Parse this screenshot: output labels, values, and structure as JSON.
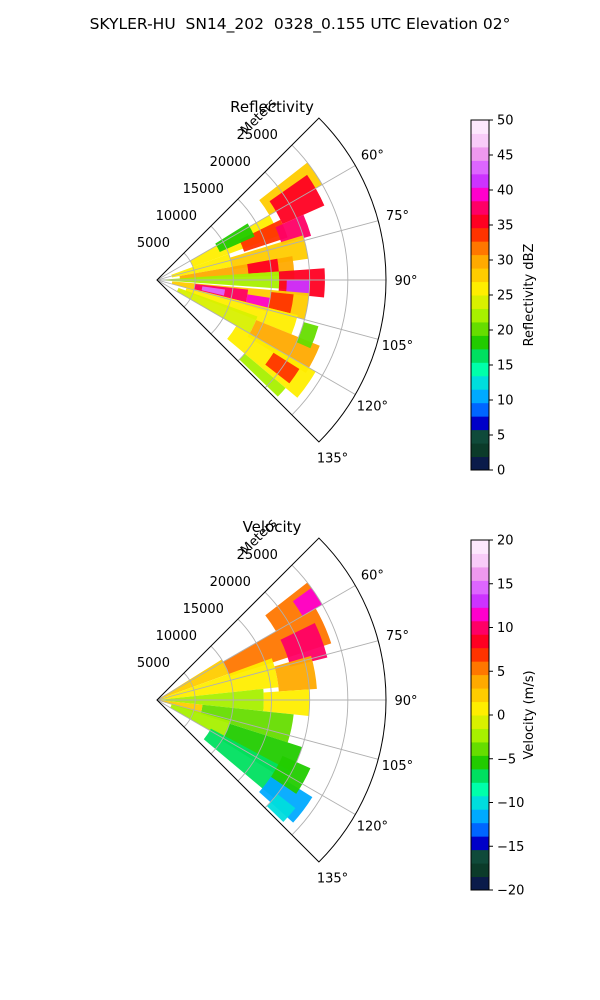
{
  "figure": {
    "title": "SKYLER-HU  SN14_202  0328_0.155 UTC Elevation 02°"
  },
  "chart_data": [
    {
      "type": "heatmap",
      "projection": "polar-sector",
      "title": "Reflectivity",
      "radial_label": "Meters",
      "radial_ticks": [
        5000,
        10000,
        15000,
        20000,
        25000
      ],
      "radial_tick_labels": [
        "5000",
        "10000",
        "15000",
        "20000",
        "25000"
      ],
      "r_lim": [
        0,
        30000
      ],
      "angle_ticks": [
        60,
        75,
        90,
        105,
        120,
        135
      ],
      "angle_tick_labels": [
        "60°",
        "75°",
        "90°",
        "105°",
        "120°",
        "135°"
      ],
      "angle_lim": [
        45,
        135
      ],
      "grid": true,
      "colorbar": {
        "label": "Reflectivity dBZ",
        "ticks": [
          0,
          5,
          10,
          15,
          20,
          25,
          30,
          35,
          40,
          45,
          50
        ],
        "tick_labels": [
          "0",
          "5",
          "10",
          "15",
          "20",
          "25",
          "30",
          "35",
          "40",
          "45",
          "50"
        ],
        "range": [
          0,
          50
        ],
        "colors": [
          "#0a1b4a",
          "#0b3b2a",
          "#0f4a3a",
          "#0000c8",
          "#0066ff",
          "#00aaff",
          "#00dddd",
          "#00ffaa",
          "#00e060",
          "#22cc00",
          "#66dd00",
          "#a8f000",
          "#d8f000",
          "#ffee00",
          "#ffcc00",
          "#ffaa00",
          "#ff7700",
          "#ff3300",
          "#ff0022",
          "#ff0066",
          "#ff00cc",
          "#cc33ff",
          "#dd66ff",
          "#ee99ee",
          "#f8ccf8",
          "#fde8fd"
        ]
      },
      "cells": [
        {
          "az": [
            52,
            60
          ],
          "r": [
            17000,
            25000
          ],
          "value": 27
        },
        {
          "az": [
            55,
            66
          ],
          "r": [
            18000,
            24000
          ],
          "value": 36
        },
        {
          "az": [
            60,
            70
          ],
          "r": [
            5000,
            17000
          ],
          "value": 25
        },
        {
          "az": [
            64,
            72
          ],
          "r": [
            12000,
            18000
          ],
          "value": 34
        },
        {
          "az": [
            58,
            66
          ],
          "r": [
            9000,
            14000
          ],
          "value": 18
        },
        {
          "az": [
            66,
            74
          ],
          "r": [
            17000,
            21000
          ],
          "value": 38
        },
        {
          "az": [
            70,
            80
          ],
          "r": [
            2000,
            10000
          ],
          "value": 26
        },
        {
          "az": [
            73,
            82
          ],
          "r": [
            10000,
            20000
          ],
          "value": 28
        },
        {
          "az": [
            80,
            88
          ],
          "r": [
            3000,
            18000
          ],
          "value": 30
        },
        {
          "az": [
            80,
            86
          ],
          "r": [
            12000,
            16000
          ],
          "value": 36
        },
        {
          "az": [
            86,
            94
          ],
          "r": [
            1000,
            18000
          ],
          "value": 22
        },
        {
          "az": [
            86,
            96
          ],
          "r": [
            16000,
            22000
          ],
          "value": 35
        },
        {
          "az": [
            90,
            96
          ],
          "r": [
            17000,
            20000
          ],
          "value": 42
        },
        {
          "az": [
            95,
            105
          ],
          "r": [
            2000,
            20000
          ],
          "value": 28
        },
        {
          "az": [
            96,
            104
          ],
          "r": [
            5000,
            12000
          ],
          "value": 38
        },
        {
          "az": [
            98,
            103
          ],
          "r": [
            6000,
            9000
          ],
          "value": 44
        },
        {
          "az": [
            99,
            106
          ],
          "r": [
            12000,
            15000
          ],
          "value": 40
        },
        {
          "az": [
            96,
            104
          ],
          "r": [
            15000,
            18000
          ],
          "value": 34
        },
        {
          "az": [
            104,
            112
          ],
          "r": [
            4000,
            19000
          ],
          "value": 26
        },
        {
          "az": [
            110,
            120
          ],
          "r": [
            3000,
            14000
          ],
          "value": 24
        },
        {
          "az": [
            112,
            122
          ],
          "r": [
            14000,
            23000
          ],
          "value": 30
        },
        {
          "az": [
            120,
            130
          ],
          "r": [
            12000,
            24000
          ],
          "value": 25
        },
        {
          "az": [
            122,
            128
          ],
          "r": [
            18000,
            22000
          ],
          "value": 33
        },
        {
          "az": [
            130,
            134
          ],
          "r": [
            15000,
            22000
          ],
          "value": 22
        },
        {
          "az": [
            106,
            114
          ],
          "r": [
            20000,
            22000
          ],
          "value": 20
        }
      ]
    },
    {
      "type": "heatmap",
      "projection": "polar-sector",
      "title": "Velocity",
      "radial_label": "Meters",
      "radial_ticks": [
        5000,
        10000,
        15000,
        20000,
        25000
      ],
      "radial_tick_labels": [
        "5000",
        "10000",
        "15000",
        "20000",
        "25000"
      ],
      "r_lim": [
        0,
        30000
      ],
      "angle_ticks": [
        60,
        75,
        90,
        105,
        120,
        135
      ],
      "angle_tick_labels": [
        "60°",
        "75°",
        "90°",
        "105°",
        "120°",
        "135°"
      ],
      "angle_lim": [
        45,
        135
      ],
      "grid": true,
      "colorbar": {
        "label": "Velocity (m/s)",
        "ticks": [
          -20,
          -15,
          -10,
          -5,
          0,
          5,
          10,
          15,
          20
        ],
        "tick_labels": [
          "−20",
          "−15",
          "−10",
          "−5",
          "0",
          "5",
          "10",
          "15",
          "20"
        ],
        "range": [
          -20,
          20
        ],
        "colors": [
          "#0a1b4a",
          "#0b3b2a",
          "#0f4a3a",
          "#0000c8",
          "#0066ff",
          "#00aaff",
          "#00dddd",
          "#00ffaa",
          "#00e060",
          "#22cc00",
          "#66dd00",
          "#a8f000",
          "#d8f000",
          "#ffee00",
          "#ffcc00",
          "#ffaa00",
          "#ff7700",
          "#ff3300",
          "#ff0022",
          "#ff0066",
          "#ff00cc",
          "#cc33ff",
          "#dd66ff",
          "#ee99ee",
          "#f8ccf8",
          "#fde8fd"
        ]
      },
      "cells": [
        {
          "az": [
            52,
            60
          ],
          "r": [
            18000,
            25000
          ],
          "value": 6
        },
        {
          "az": [
            54,
            60
          ],
          "r": [
            22000,
            25000
          ],
          "value": 11
        },
        {
          "az": [
            60,
            72
          ],
          "r": [
            10000,
            24000
          ],
          "value": 6
        },
        {
          "az": [
            64,
            76
          ],
          "r": [
            18000,
            23000
          ],
          "value": 10
        },
        {
          "az": [
            58,
            70
          ],
          "r": [
            0,
            10000
          ],
          "value": 2
        },
        {
          "az": [
            70,
            84
          ],
          "r": [
            0,
            16000
          ],
          "value": 1
        },
        {
          "az": [
            74,
            86
          ],
          "r": [
            16000,
            21000
          ],
          "value": 4
        },
        {
          "az": [
            84,
            96
          ],
          "r": [
            0,
            14000
          ],
          "value": -2
        },
        {
          "az": [
            86,
            96
          ],
          "r": [
            14000,
            20000
          ],
          "value": 1
        },
        {
          "az": [
            96,
            108
          ],
          "r": [
            0,
            6000
          ],
          "value": 3
        },
        {
          "az": [
            96,
            108
          ],
          "r": [
            6000,
            18000
          ],
          "value": -4
        },
        {
          "az": [
            106,
            120
          ],
          "r": [
            2000,
            10000
          ],
          "value": -2
        },
        {
          "az": [
            108,
            122
          ],
          "r": [
            10000,
            20000
          ],
          "value": -6
        },
        {
          "az": [
            118,
            130
          ],
          "r": [
            8000,
            20000
          ],
          "value": -7
        },
        {
          "az": [
            122,
            132
          ],
          "r": [
            18000,
            24000
          ],
          "value": -11
        },
        {
          "az": [
            114,
            124
          ],
          "r": [
            18000,
            22000
          ],
          "value": -5
        },
        {
          "az": [
            128,
            134
          ],
          "r": [
            20000,
            23000
          ],
          "value": -10
        }
      ]
    }
  ]
}
